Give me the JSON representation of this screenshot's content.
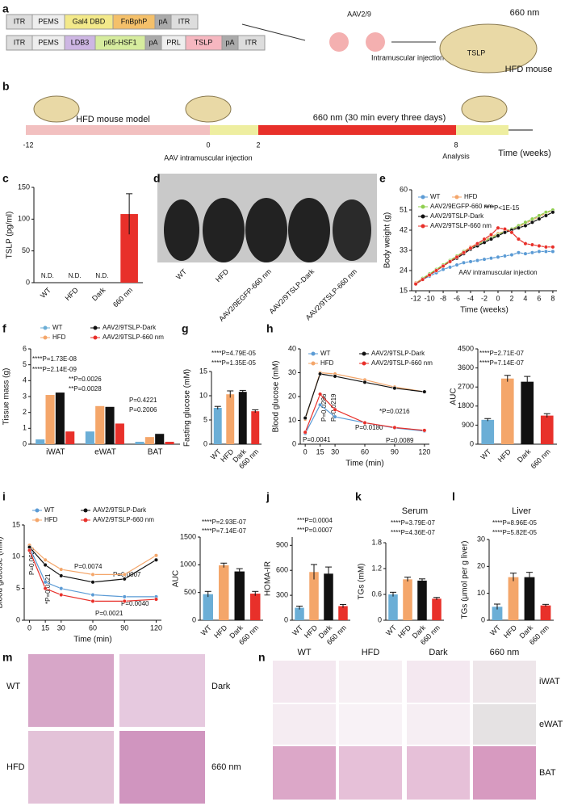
{
  "panel_labels": [
    "a",
    "b",
    "c",
    "d",
    "e",
    "f",
    "g",
    "h",
    "i",
    "j",
    "k",
    "l",
    "m",
    "n"
  ],
  "a": {
    "construct1": [
      "ITR",
      "PEMS",
      "Gal4 DBD",
      "FnBphP",
      "pA",
      "ITR"
    ],
    "construct2": [
      "ITR",
      "PEMS",
      "LDB3",
      "p65-HSF1",
      "pA",
      "PRL",
      "TSLP",
      "pA",
      "ITR"
    ],
    "virus": "AAV2/9",
    "injection": "Intramuscular injection",
    "light": "660 nm",
    "mouse_label": "TSLP",
    "mouse_caption": "HFD mouse"
  },
  "b": {
    "model": "HFD mouse model",
    "light": "660 nm (30 min every three days)",
    "ticks": [
      "-12",
      "0",
      "2",
      "8"
    ],
    "aav": "AAV intramuscular injection",
    "analysis": "Analysis",
    "axis": "Time (weeks)"
  },
  "d": {
    "labels": [
      "WT",
      "HFD",
      "AAV2/9EGFP-660 nm",
      "AAV2/9TSLP-Dark",
      "AAV2/9TSLP-660 nm"
    ]
  },
  "m": {
    "labels": [
      "WT",
      "Dark",
      "HFD",
      "660 nm"
    ]
  },
  "n": {
    "columns": [
      "WT",
      "HFD",
      "Dark",
      "660 nm"
    ],
    "rows": [
      "iWAT",
      "eWAT",
      "BAT"
    ]
  },
  "chart_data": [
    {
      "type": "bar",
      "ylabel": "TSLP (pg/ml)",
      "categories": [
        "WT",
        "HFD",
        "Dark",
        "660 nm"
      ],
      "values": [
        null,
        null,
        null,
        108
      ],
      "value_labels": [
        "N.D.",
        "N.D.",
        "N.D.",
        null
      ],
      "errors": [
        null,
        null,
        null,
        32
      ],
      "colors": [
        "#6baed6",
        "#f4a66a",
        "#111111",
        "#e8302a"
      ],
      "ylim": [
        0,
        150
      ],
      "yticks": [
        0,
        50,
        100,
        150
      ]
    },
    {
      "type": "line",
      "xlabel": "Time (weeks)",
      "ylabel": "Body weight (g)",
      "x": [
        -12,
        -11,
        -10,
        -9,
        -8,
        -7,
        -6,
        -5,
        -4,
        -3,
        -2,
        -1,
        0,
        1,
        2,
        3,
        4,
        5,
        6,
        7,
        8
      ],
      "series": [
        {
          "name": "WT",
          "color": "#5b9bd5",
          "values": [
            18,
            20,
            21.5,
            23,
            24.5,
            25.5,
            26.5,
            27.5,
            28,
            28.5,
            29,
            29.5,
            30,
            30.5,
            31,
            32,
            31.5,
            32,
            32.5,
            32.5,
            32.5
          ]
        },
        {
          "name": "HFD",
          "color": "#f4a66a",
          "values": [
            18.5,
            20.5,
            22.5,
            24.5,
            26.5,
            28.5,
            30.5,
            32.5,
            34.5,
            36,
            37.5,
            39,
            40.5,
            41.5,
            42.5,
            43.5,
            45,
            46.5,
            48,
            49.5,
            51
          ]
        },
        {
          "name": "AAV2/9EGFP-660 nm",
          "color": "#8fcf4f",
          "values": [
            18,
            20.5,
            22.5,
            24.5,
            26.5,
            28.5,
            30.5,
            32.5,
            34,
            35.5,
            37,
            38.5,
            40,
            41.5,
            42.5,
            44,
            45.5,
            47,
            48.5,
            50,
            51
          ]
        },
        {
          "name": "AAV2/9TSLP-Dark",
          "color": "#111111",
          "values": [
            18,
            20,
            22,
            24,
            26,
            28,
            29.5,
            31.5,
            33.5,
            35,
            36.5,
            38,
            39.5,
            41,
            42,
            43,
            44,
            45.5,
            47,
            48.5,
            50
          ]
        },
        {
          "name": "AAV2/9TSLP-660 nm",
          "color": "#e8302a",
          "values": [
            18,
            20,
            22,
            24,
            26,
            28,
            30,
            32,
            34,
            36,
            38,
            40,
            43,
            42.5,
            41,
            38,
            36,
            35.5,
            35,
            34.5,
            34.5
          ]
        }
      ],
      "xlim": [
        -12.6,
        8.6
      ],
      "xticks": [
        -12,
        -10,
        -8,
        -6,
        -4,
        -2,
        0,
        2,
        4,
        6,
        8
      ],
      "ylim": [
        15,
        60
      ],
      "yticks": [
        15,
        24,
        33,
        42,
        51,
        60
      ],
      "annotations": [
        "****",
        "P<1E-15",
        "AAV intramuscular injection"
      ]
    },
    {
      "type": "grouped_bar",
      "ylabel": "Tissue mass (g)",
      "categories": [
        "iWAT",
        "eWAT",
        "BAT"
      ],
      "series": [
        {
          "name": "WT",
          "color": "#6baed6",
          "values": [
            0.3,
            0.8,
            0.15
          ]
        },
        {
          "name": "HFD",
          "color": "#f4a66a",
          "values": [
            3.1,
            2.4,
            0.45
          ]
        },
        {
          "name": "AAV2/9TSLP-Dark",
          "color": "#111111",
          "values": [
            3.25,
            2.35,
            0.65
          ]
        },
        {
          "name": "AAV2/9TSLP-660 nm",
          "color": "#e8302a",
          "values": [
            0.8,
            1.3,
            0.15
          ]
        }
      ],
      "ylim": [
        0,
        6
      ],
      "yticks": [
        0,
        1,
        2,
        3,
        4,
        5,
        6
      ],
      "annotations": [
        "****P=1.73E-08",
        "****P=2.14E-09",
        "**P=0.0026",
        "**P=0.0028",
        "P=0.4221",
        "P=0.2006"
      ]
    },
    {
      "type": "bar",
      "ylabel": "Fasting glucose (mM)",
      "categories": [
        "WT",
        "HFD",
        "Dark",
        "660 nm"
      ],
      "values": [
        7.5,
        10.3,
        10.8,
        6.8
      ],
      "errors": [
        0.3,
        0.7,
        0.3,
        0.3
      ],
      "colors": [
        "#6baed6",
        "#f4a66a",
        "#111111",
        "#e8302a"
      ],
      "ylim": [
        0,
        15
      ],
      "yticks": [
        0,
        5,
        10,
        15
      ],
      "annotations": [
        "****P=4.79E-05",
        "****P=1.35E-05"
      ]
    },
    {
      "type": "line",
      "xlabel": "Time (min)",
      "ylabel": "Blood glucose (mM)",
      "x": [
        0,
        15,
        30,
        60,
        90,
        120
      ],
      "series": [
        {
          "name": "WT",
          "color": "#5b9bd5",
          "values": [
            4.5,
            16.5,
            11.5,
            9,
            6.8,
            5.5
          ]
        },
        {
          "name": "HFD",
          "color": "#f4a66a",
          "values": [
            10.5,
            30,
            29.5,
            27,
            24,
            22
          ]
        },
        {
          "name": "AAV2/9TSLP-Dark",
          "color": "#111111",
          "values": [
            11,
            29.5,
            28.5,
            26,
            23.5,
            22
          ]
        },
        {
          "name": "AAV2/9TSLP-660 nm",
          "color": "#e8302a",
          "values": [
            5,
            21,
            14.5,
            9,
            7,
            5.8
          ]
        }
      ],
      "xlim": [
        -5,
        125
      ],
      "xticks": [
        0,
        15,
        30,
        60,
        90,
        120
      ],
      "ylim": [
        0,
        40
      ],
      "yticks": [
        0,
        10,
        20,
        30,
        40
      ],
      "annotations": [
        "P=0.0041",
        "P=0.0286",
        "P=0.0219",
        "P=0.0180",
        "*P=0.0216",
        "P=0.0089"
      ]
    },
    {
      "type": "bar",
      "ylabel": "AUC",
      "categories": [
        "WT",
        "HFD",
        "Dark",
        "660 nm"
      ],
      "values": [
        1150,
        3100,
        2950,
        1350
      ],
      "errors": [
        60,
        150,
        250,
        90
      ],
      "colors": [
        "#6baed6",
        "#f4a66a",
        "#111111",
        "#e8302a"
      ],
      "ylim": [
        0,
        4500
      ],
      "yticks": [
        0,
        900,
        1800,
        2700,
        3600,
        4500
      ],
      "annotations": [
        "****P=2.71E-07",
        "****P=7.14E-07"
      ]
    },
    {
      "type": "line",
      "xlabel": "Time (min)",
      "ylabel": "Blood glucose (mM)",
      "x": [
        0,
        15,
        30,
        60,
        90,
        120
      ],
      "series": [
        {
          "name": "WT",
          "color": "#5b9bd5",
          "values": [
            11.5,
            6,
            5,
            4,
            3.7,
            3.7
          ]
        },
        {
          "name": "HFD",
          "color": "#f4a66a",
          "values": [
            11.8,
            9.5,
            8,
            7.2,
            7.2,
            10.2
          ]
        },
        {
          "name": "AAV2/9TSLP-Dark",
          "color": "#111111",
          "values": [
            11.5,
            8.7,
            7,
            6,
            6.5,
            9.5
          ]
        },
        {
          "name": "AAV2/9TSLP-660 nm",
          "color": "#e8302a",
          "values": [
            11,
            5,
            4,
            3,
            3,
            3.3
          ]
        }
      ],
      "xlim": [
        -5,
        125
      ],
      "xticks": [
        0,
        15,
        30,
        60,
        90,
        120
      ],
      "ylim": [
        0,
        15
      ],
      "yticks": [
        0,
        5,
        10,
        15
      ],
      "annotations": [
        "P=0.0620",
        "*P=0.0321",
        "P=0.0074",
        "P=0.0021",
        "P=0.0007",
        "P=0.0040"
      ]
    },
    {
      "type": "bar",
      "ylabel": "AUC",
      "categories": [
        "WT",
        "HFD",
        "Dark",
        "660 nm"
      ],
      "values": [
        470,
        990,
        880,
        480
      ],
      "errors": [
        50,
        40,
        50,
        40
      ],
      "colors": [
        "#6baed6",
        "#f4a66a",
        "#111111",
        "#e8302a"
      ],
      "ylim": [
        0,
        1500
      ],
      "yticks": [
        0,
        500,
        1000,
        1500
      ],
      "annotations": [
        "****P=2.93E-07",
        "****P=7.14E-07"
      ]
    },
    {
      "type": "bar",
      "ylabel": "HOMA-IR",
      "categories": [
        "WT",
        "HFD",
        "Dark",
        "660 nm"
      ],
      "values": [
        150,
        580,
        560,
        170
      ],
      "errors": [
        20,
        90,
        80,
        20
      ],
      "colors": [
        "#6baed6",
        "#f4a66a",
        "#111111",
        "#e8302a"
      ],
      "ylim": [
        0,
        1000
      ],
      "yticks": [
        0,
        300,
        600,
        900
      ],
      "annotations": [
        "***P=0.0004",
        "***P=0.0007"
      ]
    },
    {
      "type": "bar",
      "title": "Serum",
      "ylabel": "TGs (mM)",
      "categories": [
        "WT",
        "HFD",
        "Dark",
        "660 nm"
      ],
      "values": [
        0.6,
        0.95,
        0.92,
        0.5
      ],
      "errors": [
        0.05,
        0.05,
        0.04,
        0.03
      ],
      "colors": [
        "#6baed6",
        "#f4a66a",
        "#111111",
        "#e8302a"
      ],
      "ylim": [
        0,
        1.8
      ],
      "yticks": [
        0,
        0.6,
        1.2,
        1.8
      ],
      "annotations": [
        "****P=3.79E-07",
        "****P=4.36E-07"
      ]
    },
    {
      "type": "bar",
      "title": "Liver",
      "ylabel": "TGs (μmol per g liver)",
      "categories": [
        "WT",
        "HFD",
        "Dark",
        "660 nm"
      ],
      "values": [
        5,
        16,
        16,
        5.5
      ],
      "errors": [
        1,
        1.5,
        1.8,
        0.4
      ],
      "colors": [
        "#6baed6",
        "#f4a66a",
        "#111111",
        "#e8302a"
      ],
      "ylim": [
        0,
        30
      ],
      "yticks": [
        0,
        10,
        20,
        30
      ],
      "annotations": [
        "****P=8.96E-05",
        "****P=5.82E-05"
      ]
    }
  ]
}
